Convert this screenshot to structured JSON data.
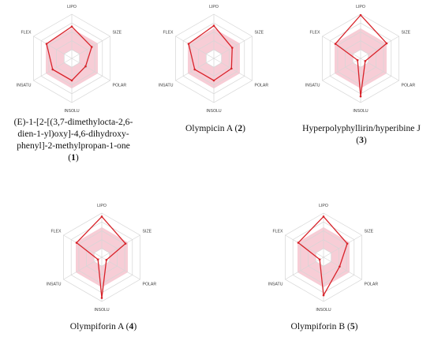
{
  "axes": [
    "LIPO",
    "SIZE",
    "POLAR",
    "INSOLU",
    "INSATU",
    "FLEX"
  ],
  "colors": {
    "grid": "#d6d6d6",
    "band_fill": "#f7cdd6",
    "data_line": "#d8232a"
  },
  "optimal_band": {
    "inner": 0.2,
    "outer": 0.68
  },
  "chart_data": [
    {
      "type": "radar",
      "compound_number": "1",
      "caption_lines": [
        "(E)-1-[2-[(3,7-dimethylocta-2,6-",
        "dien-1-yl)oxy]-4,6-dihydroxy-",
        "phenyl]-2-methylpropan-1-one"
      ],
      "caption_number_line": "1",
      "axes": [
        "LIPO",
        "SIZE",
        "POLAR",
        "INSOLU",
        "INSATU",
        "FLEX"
      ],
      "values": [
        0.72,
        0.52,
        0.36,
        0.5,
        0.5,
        0.66
      ],
      "scale": [
        0,
        1
      ]
    },
    {
      "type": "radar",
      "compound_number": "2",
      "caption_lines": [
        "Olympicin A"
      ],
      "axes": [
        "LIPO",
        "SIZE",
        "POLAR",
        "INSOLU",
        "INSATU",
        "FLEX"
      ],
      "values": [
        0.74,
        0.48,
        0.46,
        0.5,
        0.5,
        0.66
      ],
      "scale": [
        0,
        1
      ]
    },
    {
      "type": "radar",
      "compound_number": "3",
      "caption_lines": [
        "Hyperpolyphyllirin/hyperibine J"
      ],
      "caption_number_line": "3",
      "axes": [
        "LIPO",
        "SIZE",
        "POLAR",
        "INSOLU",
        "INSATU",
        "FLEX"
      ],
      "values": [
        0.98,
        0.68,
        0.12,
        0.86,
        0.08,
        0.66
      ],
      "scale": [
        0,
        1
      ]
    },
    {
      "type": "radar",
      "compound_number": "4",
      "caption_lines": [
        "Olympiforin A"
      ],
      "axes": [
        "LIPO",
        "SIZE",
        "POLAR",
        "INSOLU",
        "INSATU",
        "FLEX"
      ],
      "values": [
        0.92,
        0.62,
        0.12,
        0.92,
        0.1,
        0.66
      ],
      "scale": [
        0,
        1
      ]
    },
    {
      "type": "radar",
      "compound_number": "5",
      "caption_lines": [
        "Olympiforin B"
      ],
      "axes": [
        "LIPO",
        "SIZE",
        "POLAR",
        "INSOLU",
        "INSATU",
        "FLEX"
      ],
      "values": [
        0.92,
        0.62,
        0.42,
        0.86,
        0.1,
        0.66
      ],
      "scale": [
        0,
        1
      ]
    }
  ]
}
